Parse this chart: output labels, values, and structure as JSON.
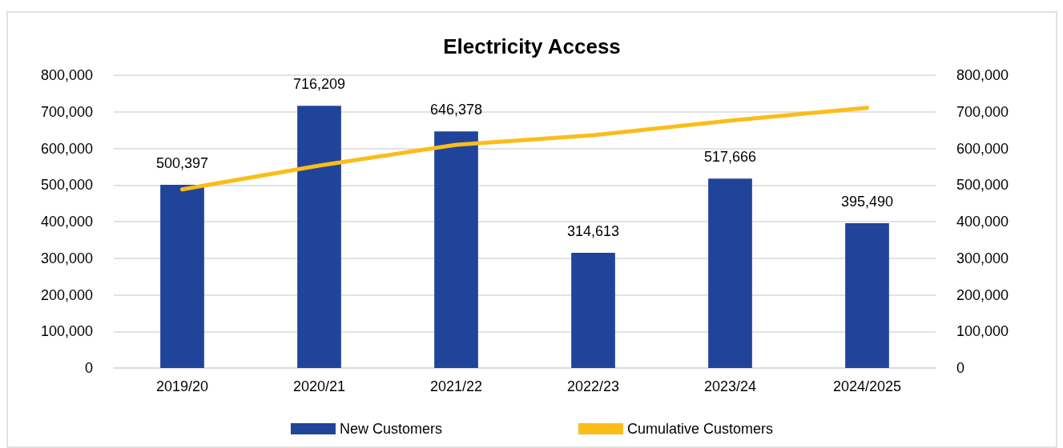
{
  "chart_data": {
    "type": "bar",
    "title": "Electricity Access",
    "categories": [
      "2019/20",
      "2020/21",
      "2021/22",
      "2022/23",
      "2023/24",
      "2024/2025"
    ],
    "series": [
      {
        "name": "New Customers",
        "color": "#21449b",
        "values": [
          500397,
          716209,
          646378,
          314613,
          517666,
          395490
        ],
        "value_labels": [
          "500,397",
          "716,209",
          "646,378",
          "314,613",
          "517,666",
          "395,490"
        ]
      },
      {
        "name": "Cumulative Customers",
        "type": "line",
        "axis": "y2",
        "color": "#fbbd19",
        "marker": "none",
        "line_style": "solid",
        "values": [
          488000,
          553000,
          610000,
          636000,
          676000,
          711000
        ]
      }
    ],
    "ylim": [
      0,
      800000
    ],
    "yticks": [
      {
        "value": 0,
        "label": "0"
      },
      {
        "value": 100000,
        "label": "100,000"
      },
      {
        "value": 200000,
        "label": "200,000"
      },
      {
        "value": 300000,
        "label": "300,000"
      },
      {
        "value": 400000,
        "label": "400,000"
      },
      {
        "value": 500000,
        "label": "500,000"
      },
      {
        "value": 600000,
        "label": "600,000"
      },
      {
        "value": 700000,
        "label": "700,000"
      },
      {
        "value": 800000,
        "label": "800,000"
      }
    ],
    "y2lim": [
      0,
      800000
    ],
    "y2ticks": [
      {
        "value": 0,
        "label": "0"
      },
      {
        "value": 100000,
        "label": "100,000"
      },
      {
        "value": 200000,
        "label": "200,000"
      },
      {
        "value": 300000,
        "label": "300,000"
      },
      {
        "value": 400000,
        "label": "400,000"
      },
      {
        "value": 500000,
        "label": "500,000"
      },
      {
        "value": 600000,
        "label": "600,000"
      },
      {
        "value": 700000,
        "label": "700,000"
      },
      {
        "value": 800000,
        "label": "800,000"
      }
    ],
    "grid": "y",
    "legend": "bottom"
  }
}
